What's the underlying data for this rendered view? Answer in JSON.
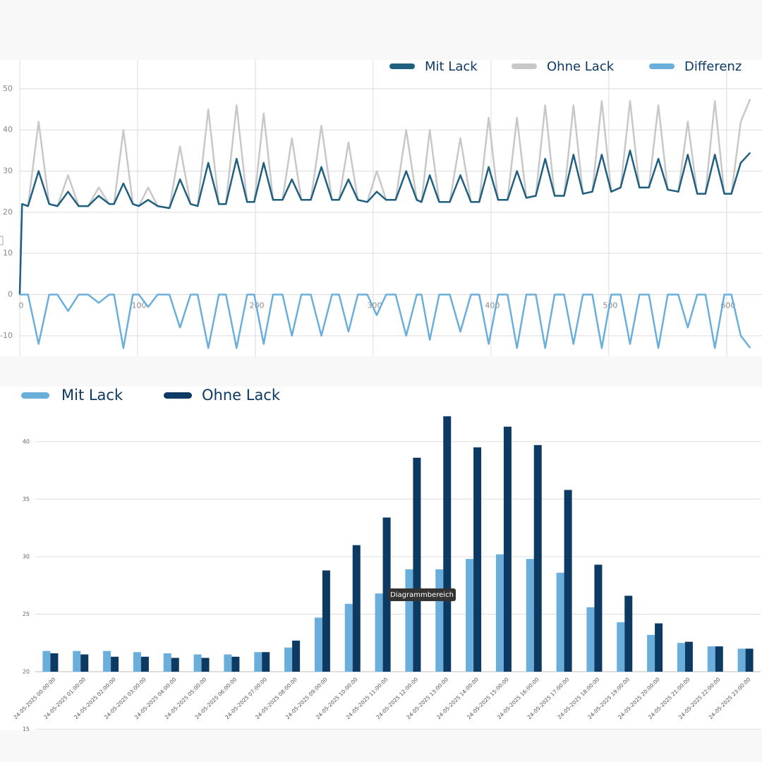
{
  "chart_data": [
    {
      "type": "line",
      "x": [
        0,
        2,
        7,
        16,
        25,
        32,
        41,
        50,
        58,
        67,
        76,
        80,
        88,
        96,
        101,
        109,
        117,
        127,
        136,
        145,
        151,
        160,
        169,
        175,
        184,
        193,
        199,
        207,
        215,
        223,
        231,
        239,
        247,
        256,
        265,
        271,
        279,
        287,
        295,
        303,
        311,
        319,
        328,
        337,
        341,
        348,
        356,
        365,
        374,
        383,
        390,
        398,
        406,
        414,
        422,
        430,
        438,
        446,
        454,
        462,
        470,
        478,
        486,
        494,
        502,
        510,
        518,
        526,
        534,
        542,
        550,
        559,
        567,
        575,
        582,
        590,
        598,
        604,
        612,
        620
      ],
      "series": [
        {
          "name": "Mit Lack",
          "color": "#1f5f80",
          "values": [
            0,
            22,
            21.5,
            30,
            22,
            21.5,
            25,
            21.5,
            21.5,
            24,
            22,
            22,
            27,
            22,
            21.5,
            23,
            21.5,
            21,
            28,
            22,
            21.5,
            32,
            22,
            22,
            33,
            22.5,
            22.5,
            32,
            23,
            23,
            28,
            23,
            23,
            31,
            23,
            23,
            28,
            23,
            22.5,
            25,
            23,
            23,
            30,
            23,
            22.5,
            29,
            22.5,
            22.5,
            29,
            22.5,
            22.5,
            31,
            23,
            23,
            30,
            23.5,
            24,
            33,
            24,
            24,
            34,
            24.5,
            25,
            34,
            25,
            26,
            35,
            26,
            26,
            33,
            25.5,
            25,
            34,
            24.5,
            24.5,
            34,
            24.5,
            24.5,
            32,
            34.5
          ]
        },
        {
          "name": "Ohne Lack",
          "color": "#c8c8c8",
          "values": [
            0,
            22,
            21.5,
            42,
            22,
            21.5,
            29,
            21.5,
            21.5,
            26,
            22,
            22,
            40,
            22,
            21.5,
            26,
            21.5,
            21,
            36,
            22,
            21.5,
            45,
            22,
            22,
            46,
            22.5,
            22.5,
            44,
            23,
            23,
            38,
            23,
            23,
            41,
            23,
            23,
            37,
            23,
            22.5,
            30,
            23,
            23,
            40,
            23,
            22.5,
            40,
            22.5,
            22.5,
            38,
            22.5,
            22.5,
            43,
            23,
            23,
            43,
            23.5,
            24,
            46,
            24,
            24,
            46,
            24.5,
            25,
            47,
            25,
            26,
            47,
            26,
            26,
            46,
            25.5,
            25,
            42,
            24.5,
            24.5,
            47,
            24.5,
            24.5,
            42,
            47.5
          ]
        },
        {
          "name": "Differenz",
          "color": "#6aaedc",
          "values": [
            0,
            0,
            0,
            -12,
            0,
            0,
            -4,
            0,
            0,
            -2,
            0,
            0,
            -13,
            0,
            0,
            -3,
            0,
            0,
            -8,
            0,
            0,
            -13,
            0,
            0,
            -13,
            0,
            0,
            -12,
            0,
            0,
            -10,
            0,
            0,
            -10,
            0,
            0,
            -9,
            0,
            0,
            -5,
            0,
            0,
            -10,
            0,
            0,
            -11,
            0,
            0,
            -9,
            0,
            0,
            -12,
            0,
            0,
            -13,
            0,
            0,
            -13,
            0,
            0,
            -12,
            0,
            0,
            -13,
            0,
            0,
            -12,
            0,
            0,
            -13,
            0,
            0,
            -8,
            0,
            0,
            -13,
            0,
            0,
            -10,
            -13
          ]
        }
      ],
      "xlim": [
        0,
        630
      ],
      "xticks": [
        0,
        100,
        200,
        300,
        400,
        500,
        600
      ],
      "ylim": [
        -15,
        57
      ],
      "yticks": [
        -10,
        0,
        10,
        20,
        30,
        40,
        50
      ],
      "grid": true,
      "legend": "top-right"
    },
    {
      "type": "bar",
      "categories": [
        "24-05-2025 00:00:00",
        "24-05-2025 01:00:00",
        "24-05-2025 02:00:00",
        "24-05-2025 03:00:00",
        "24-05-2025 04:00:00",
        "24-05-2025 05:00:00",
        "24-05-2025 06:00:00",
        "24-05-2025 07:00:00",
        "24-05-2025 08:00:00",
        "24-05-2025 09:00:00",
        "24-05-2025 10:00:00",
        "24-05-2025 11:00:00",
        "24-05-2025 12:00:00",
        "24-05-2025 13:00:00",
        "24-05-2025 14:00:00",
        "24-05-2025 15:00:00",
        "24-05-2025 16:00:00",
        "24-05-2025 17:00:00",
        "24-05-2025 18:00:00",
        "24-05-2025 19:00:00",
        "24-05-2025 20:00:00",
        "24-05-2025 21:00:00",
        "24-05-2025 22:00:00",
        "24-05-2025 23:00:00"
      ],
      "series": [
        {
          "name": "Mit Lack",
          "color": "#6aaedc",
          "values": [
            21.8,
            21.8,
            21.8,
            21.7,
            21.6,
            21.5,
            21.5,
            21.7,
            22.1,
            24.7,
            25.9,
            26.8,
            28.9,
            28.9,
            29.8,
            30.2,
            29.8,
            28.6,
            25.6,
            24.3,
            23.2,
            22.5,
            22.2,
            22.0
          ]
        },
        {
          "name": "Ohne Lack",
          "color": "#0d3a63",
          "values": [
            21.6,
            21.5,
            21.3,
            21.3,
            21.2,
            21.2,
            21.3,
            21.7,
            22.7,
            28.8,
            31.0,
            33.4,
            38.6,
            42.2,
            39.5,
            41.3,
            39.7,
            35.8,
            29.3,
            26.6,
            24.2,
            22.6,
            22.2,
            22.0
          ]
        }
      ],
      "ylim": [
        15,
        43
      ],
      "yticks": [
        15,
        20,
        25,
        30,
        35,
        40
      ],
      "baseline": 20,
      "grid": true,
      "legend": "top-left",
      "annotations": [
        "Diagrammbereich"
      ]
    }
  ]
}
